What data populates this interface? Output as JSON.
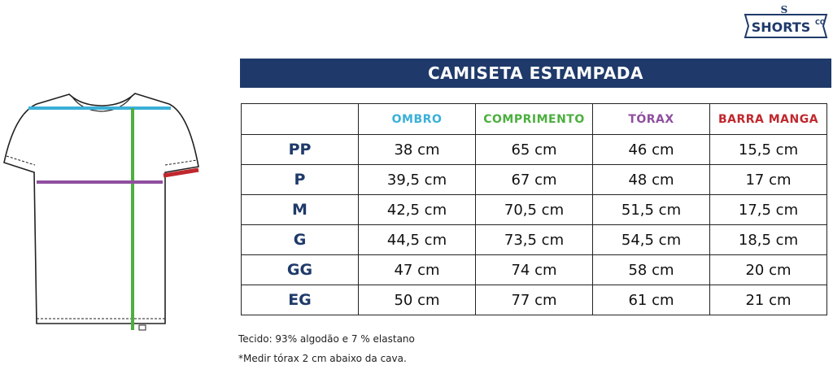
{
  "logo": {
    "name": "SHORTS",
    "suffix": "CO"
  },
  "title": "CAMISETA ESTAMPADA",
  "table": {
    "columns": [
      "OMBRO",
      "COMPRIMENTO",
      "TÓRAX",
      "BARRA MANGA"
    ],
    "rows": [
      [
        "PP",
        "38 cm",
        "65 cm",
        "46 cm",
        "15,5 cm"
      ],
      [
        "P",
        "39,5 cm",
        "67 cm",
        "48 cm",
        "17 cm"
      ],
      [
        "M",
        "42,5 cm",
        "70,5 cm",
        "51,5 cm",
        "17,5 cm"
      ],
      [
        "G",
        "44,5 cm",
        "73,5 cm",
        "54,5 cm",
        "18,5 cm"
      ],
      [
        "GG",
        "47 cm",
        "74 cm",
        "58 cm",
        "20 cm"
      ],
      [
        "EG",
        "50 cm",
        "77 cm",
        "61 cm",
        "21 cm"
      ]
    ]
  },
  "notes": [
    "Tecido: 93% algodão e 7 % elastano",
    "*Medir tórax 2 cm abaixo da cava."
  ]
}
